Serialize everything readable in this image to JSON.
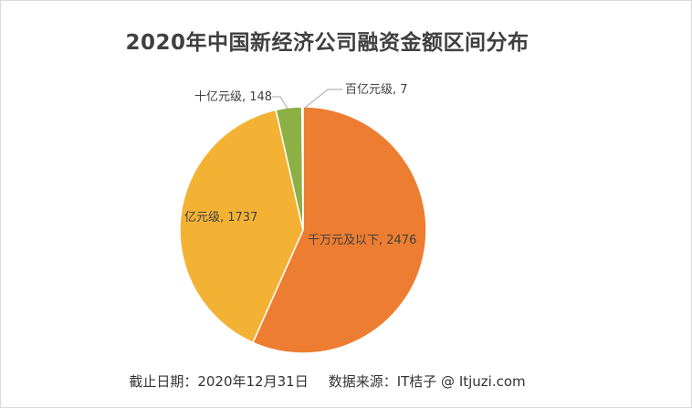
{
  "chart_data": {
    "type": "pie",
    "title": "2020年中国新经济公司融资金额区间分布",
    "slices": [
      {
        "label": "千万元及以下",
        "value": 2476,
        "color": "#ED7D31",
        "data_label": "千万元及以下, 2476"
      },
      {
        "label": "亿元级",
        "value": 1737,
        "color": "#F4B235",
        "data_label": "亿元级, 1737"
      },
      {
        "label": "十亿元级",
        "value": 148,
        "color": "#8CB043",
        "data_label": "十亿元级, 148"
      },
      {
        "label": "百亿元级",
        "value": 7,
        "color": "#4A73C2",
        "data_label": "百亿元级, 7"
      }
    ]
  },
  "footer": {
    "date_text": "截止日期：2020年12月31日",
    "source_text": "数据来源：IT桔子 @ Itjuzi.com"
  }
}
